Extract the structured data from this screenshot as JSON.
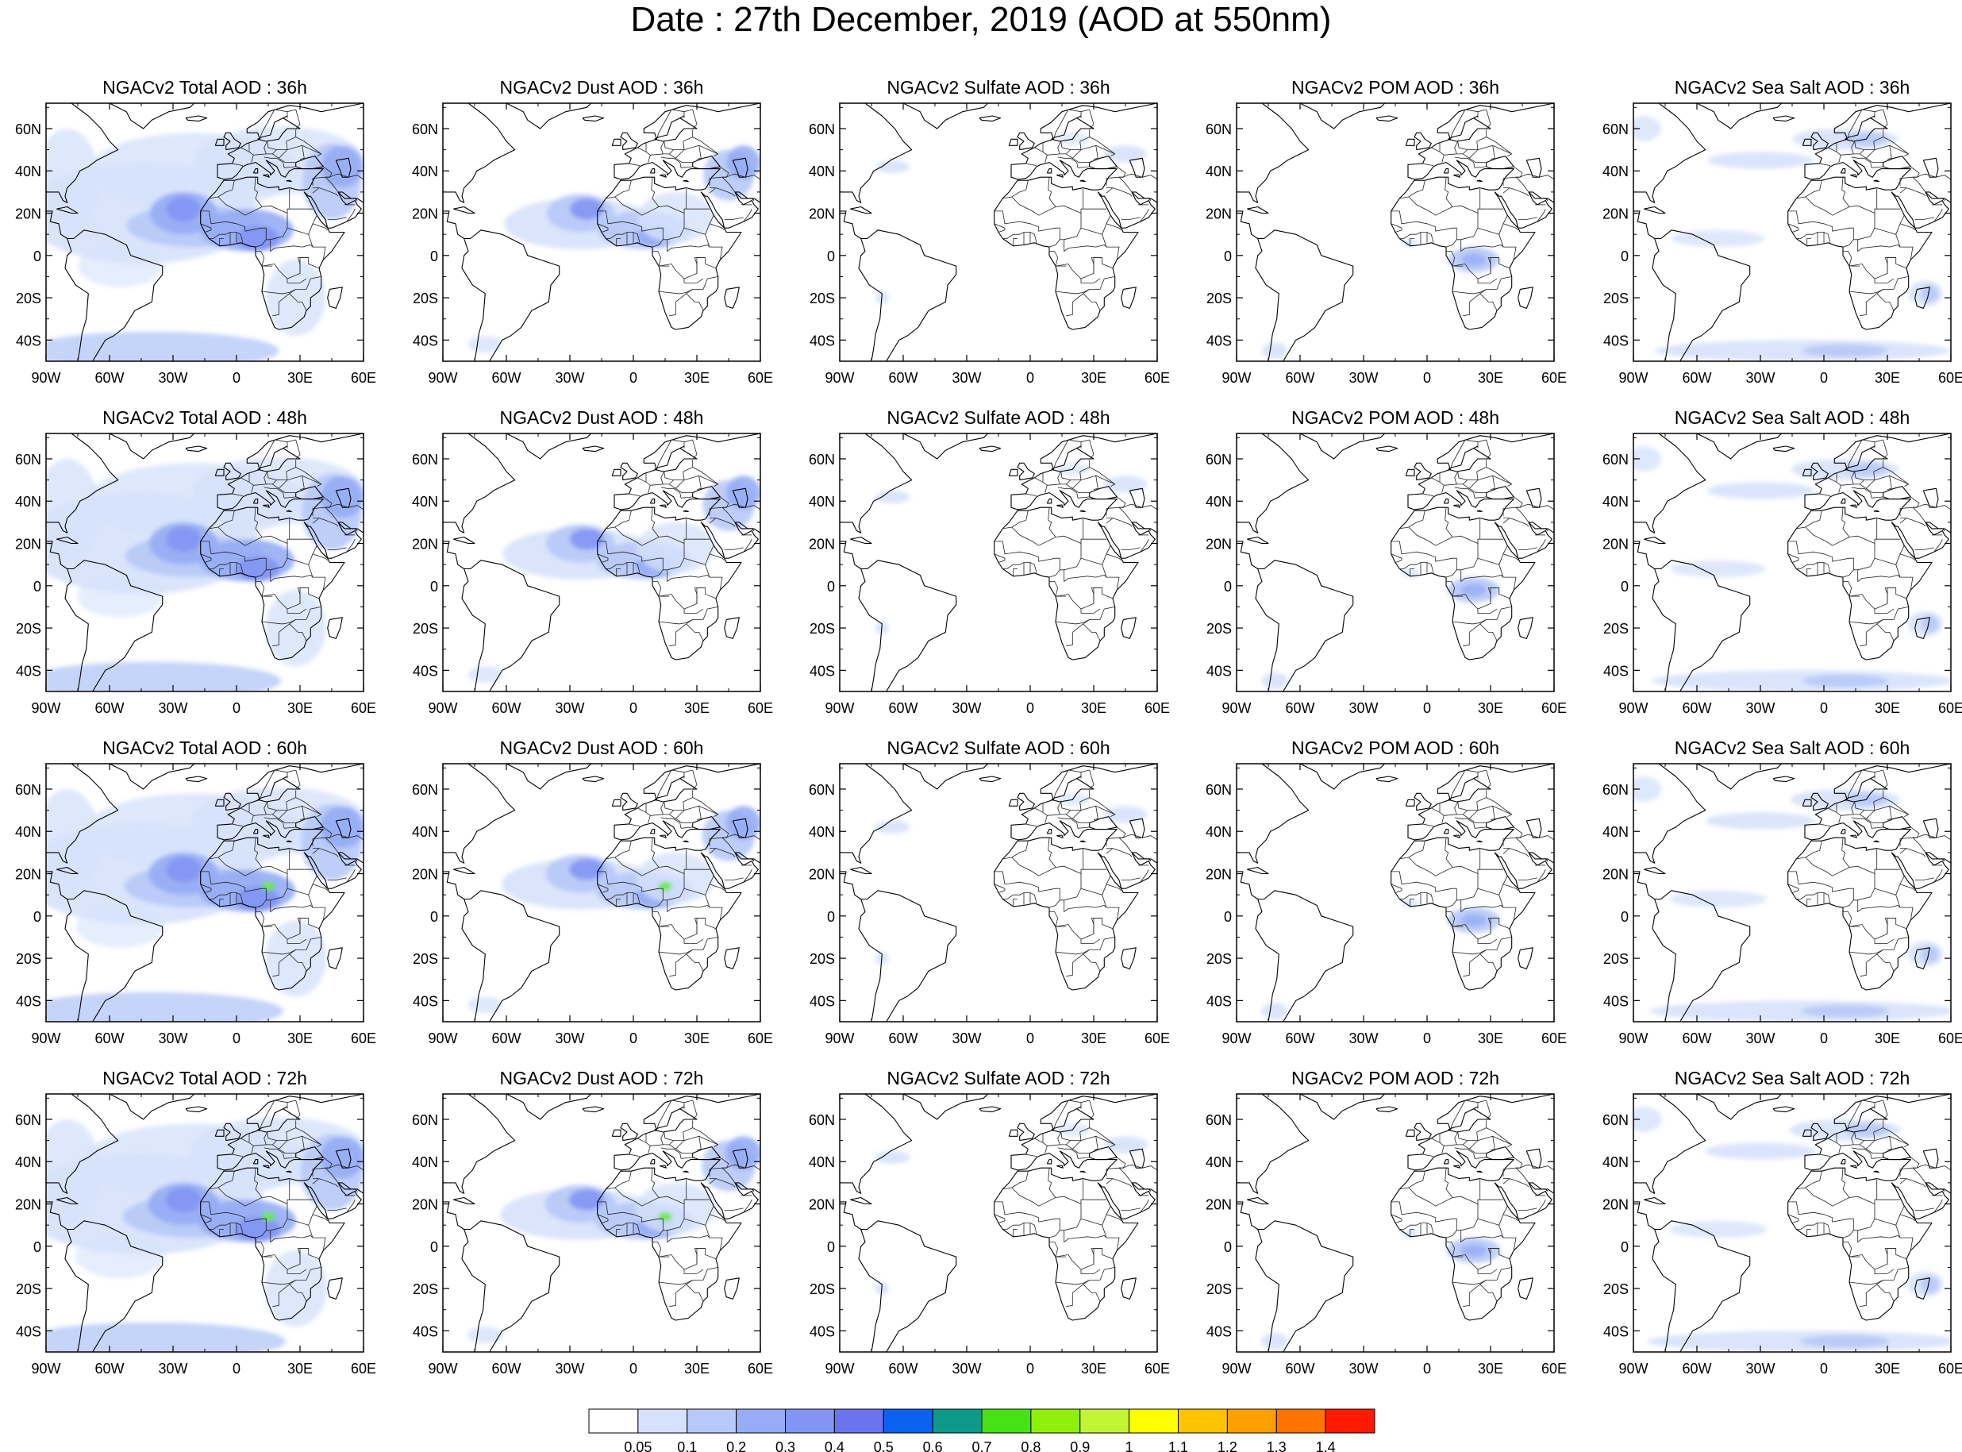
{
  "title": "Date : 27th December, 2019 (AOD at 550nm)",
  "panels": [
    [
      "NGACv2 Total AOD : 36h",
      "NGACv2 Dust AOD : 36h",
      "NGACv2 Sulfate AOD : 36h",
      "NGACv2 POM AOD : 36h",
      "NGACv2 Sea Salt AOD : 36h"
    ],
    [
      "NGACv2 Total AOD : 48h",
      "NGACv2 Dust AOD : 48h",
      "NGACv2 Sulfate AOD : 48h",
      "NGACv2 POM AOD : 48h",
      "NGACv2 Sea Salt AOD : 48h"
    ],
    [
      "NGACv2 Total AOD : 60h",
      "NGACv2 Dust AOD : 60h",
      "NGACv2 Sulfate AOD : 60h",
      "NGACv2 POM AOD : 60h",
      "NGACv2 Sea Salt AOD : 60h"
    ],
    [
      "NGACv2 Total AOD : 72h",
      "NGACv2 Dust AOD : 72h",
      "NGACv2 Sulfate AOD : 72h",
      "NGACv2 POM AOD : 72h",
      "NGACv2 Sea Salt  AOD : 72h"
    ]
  ],
  "lat_ticks": [
    "60N",
    "40N",
    "20N",
    "0",
    "20S",
    "40S"
  ],
  "lon_ticks": [
    "90W",
    "60W",
    "30W",
    "0",
    "30E",
    "60E"
  ],
  "colorbar": {
    "labels": [
      "0.05",
      "0.1",
      "0.2",
      "0.3",
      "0.4",
      "0.5",
      "0.6",
      "0.7",
      "0.8",
      "0.9",
      "1",
      "1.1",
      "1.2",
      "1.3",
      "1.4"
    ],
    "colors": [
      "#ffffff",
      "#d6e2fb",
      "#b7c9f8",
      "#96acf5",
      "#8295f4",
      "#6b74ef",
      "#0b61f0",
      "#0d9a8a",
      "#47e216",
      "#90f00b",
      "#c3f335",
      "#ffff00",
      "#ffc400",
      "#ff9f00",
      "#ff7300",
      "#ff1a00"
    ]
  },
  "chart_data": {
    "type": "map-panel-grid",
    "title": "Date : 27th December, 2019 (AOD at 550nm)",
    "rows_forecast_hours": [
      "36h",
      "48h",
      "60h",
      "72h"
    ],
    "columns_species": [
      "Total",
      "Dust",
      "Sulfate",
      "POM",
      "Sea Salt"
    ],
    "lon_range": [
      -90,
      60
    ],
    "lat_range": [
      -50,
      72
    ],
    "colorbar_levels": [
      0.05,
      0.1,
      0.2,
      0.3,
      0.4,
      0.5,
      0.6,
      0.7,
      0.8,
      0.9,
      1,
      1.1,
      1.2,
      1.3,
      1.4
    ]
  }
}
